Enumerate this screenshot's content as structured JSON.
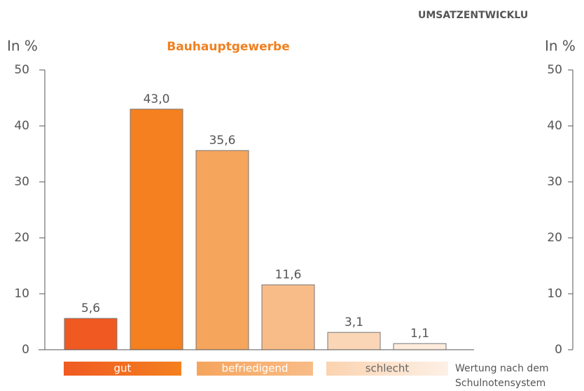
{
  "header": "UMSATZENTWICKLU",
  "chart_data": {
    "type": "bar",
    "title": "Bauhauptgewerbe",
    "y_label": "In %",
    "categories": [
      null,
      null,
      null,
      null,
      null,
      null
    ],
    "values": [
      5.6,
      43.0,
      35.6,
      11.6,
      3.1,
      1.1
    ],
    "value_labels": [
      "5,6",
      "43,0",
      "35,6",
      "11,6",
      "3,1",
      "1,1"
    ],
    "colors": [
      "#f05a22",
      "#f4801f",
      "#f5a55c",
      "#f8bc88",
      "#fbd6b6",
      "#fdebdc"
    ],
    "ylim": [
      0,
      50
    ],
    "yticks": [
      0,
      10,
      20,
      30,
      40,
      50
    ],
    "grid": false,
    "rating_scale": [
      {
        "label": "gut",
        "colors": [
          "#f05a22",
          "#f4801f"
        ]
      },
      {
        "label": "befriedigend",
        "colors": [
          "#f5a55c",
          "#f8bc88"
        ]
      },
      {
        "label": "schlecht",
        "colors": [
          "#fbd3b0",
          "#fdf0e6"
        ]
      }
    ],
    "rating_note": [
      "Wertung nach dem",
      "Schulnotensystem"
    ]
  },
  "right_panel": {
    "y_label": "In %",
    "ylim": [
      0,
      50
    ],
    "yticks": [
      0,
      10,
      20,
      30,
      40,
      50
    ]
  }
}
